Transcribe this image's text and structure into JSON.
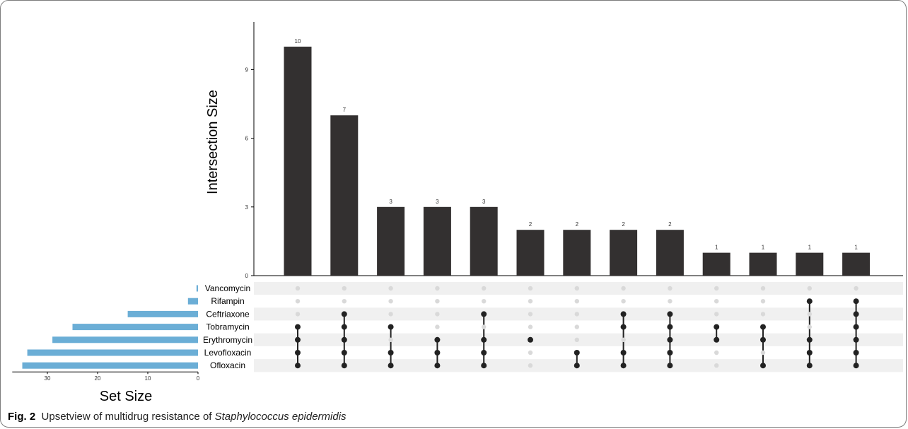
{
  "caption": {
    "label": "Fig. 2",
    "text": "Upsetview of multidrug resistance of",
    "species": "Staphylococcus epidermidis"
  },
  "chart_data": {
    "type": "bar",
    "subtype": "upset",
    "ylabel": "Intersection Size",
    "ylim": [
      0,
      11.6
    ],
    "yticks": [
      0,
      3,
      6,
      9
    ],
    "set_size_label": "Set Size",
    "set_size_ticks": [
      30,
      20,
      10,
      0
    ],
    "set_size_max": 37,
    "colors": {
      "bar": "#333030",
      "set_bar": "#6baed6",
      "dot_on": "#222222",
      "dot_off": "#d9d9d9",
      "band": "#f0f0f0"
    },
    "sets": [
      {
        "name": "Vancomycin",
        "size": 0.3
      },
      {
        "name": "Rifampin",
        "size": 2
      },
      {
        "name": "Ceftriaxone",
        "size": 14
      },
      {
        "name": "Tobramycin",
        "size": 25
      },
      {
        "name": "Erythromycin",
        "size": 29
      },
      {
        "name": "Levofloxacin",
        "size": 34
      },
      {
        "name": "Ofloxacin",
        "size": 35
      }
    ],
    "intersections": [
      {
        "value": 10,
        "sets": [
          "Tobramycin",
          "Erythromycin",
          "Levofloxacin",
          "Ofloxacin"
        ]
      },
      {
        "value": 7,
        "sets": [
          "Ceftriaxone",
          "Tobramycin",
          "Erythromycin",
          "Levofloxacin",
          "Ofloxacin"
        ]
      },
      {
        "value": 3,
        "sets": [
          "Tobramycin",
          "Levofloxacin",
          "Ofloxacin"
        ]
      },
      {
        "value": 3,
        "sets": [
          "Erythromycin",
          "Levofloxacin",
          "Ofloxacin"
        ]
      },
      {
        "value": 3,
        "sets": [
          "Ceftriaxone",
          "Erythromycin",
          "Levofloxacin",
          "Ofloxacin"
        ]
      },
      {
        "value": 2,
        "sets": [
          "Erythromycin"
        ]
      },
      {
        "value": 2,
        "sets": [
          "Levofloxacin",
          "Ofloxacin"
        ]
      },
      {
        "value": 2,
        "sets": [
          "Ceftriaxone",
          "Tobramycin",
          "Levofloxacin",
          "Ofloxacin"
        ]
      },
      {
        "value": 2,
        "sets": [
          "Ceftriaxone",
          "Tobramycin",
          "Erythromycin",
          "Levofloxacin",
          "Ofloxacin"
        ]
      },
      {
        "value": 1,
        "sets": [
          "Tobramycin",
          "Erythromycin"
        ]
      },
      {
        "value": 1,
        "sets": [
          "Tobramycin",
          "Erythromycin",
          "Ofloxacin"
        ]
      },
      {
        "value": 1,
        "sets": [
          "Rifampin",
          "Erythromycin",
          "Levofloxacin",
          "Ofloxacin"
        ]
      },
      {
        "value": 1,
        "sets": [
          "Rifampin",
          "Ceftriaxone",
          "Tobramycin",
          "Erythromycin",
          "Levofloxacin",
          "Ofloxacin"
        ]
      }
    ]
  }
}
